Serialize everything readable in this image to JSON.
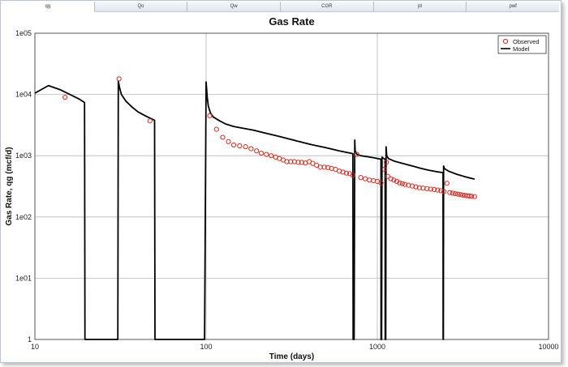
{
  "tabs": [
    {
      "label": "qg",
      "active": true
    },
    {
      "label": "Qo",
      "active": false
    },
    {
      "label": "Qw",
      "active": false
    },
    {
      "label": "CGR",
      "active": false
    },
    {
      "label": "pt",
      "active": false
    },
    {
      "label": "pwf",
      "active": false
    }
  ],
  "colors": {
    "observed": "#d42a1e",
    "model": "#000000",
    "grid": "#b8b8b8",
    "frame_border": "#b9c4d2"
  },
  "chart_data": {
    "type": "scatter",
    "title": "Gas Rate",
    "xlabel": "Time (days)",
    "ylabel": "Gas Rate, qg (mcf/d)",
    "x_scale": "log",
    "y_scale": "log",
    "xlim": [
      10,
      10000
    ],
    "ylim": [
      1,
      100000
    ],
    "x_ticks": [
      {
        "value": 10,
        "label": "10"
      },
      {
        "value": 100,
        "label": "100"
      },
      {
        "value": 1000,
        "label": "1000"
      },
      {
        "value": 10000,
        "label": "10000"
      }
    ],
    "y_ticks": [
      {
        "value": 1,
        "label": "1"
      },
      {
        "value": 10,
        "label": "1e01"
      },
      {
        "value": 100,
        "label": "1e02"
      },
      {
        "value": 1000,
        "label": "1e03"
      },
      {
        "value": 10000,
        "label": "1e04"
      },
      {
        "value": 100000,
        "label": "1e05"
      }
    ],
    "grid": true,
    "legend_position": "top-right",
    "series": [
      {
        "name": "Observed",
        "kind": "markers",
        "points": [
          [
            15,
            9000
          ],
          [
            31,
            18000
          ],
          [
            47,
            3700
          ],
          [
            105,
            4500
          ],
          [
            115,
            2700
          ],
          [
            125,
            2000
          ],
          [
            135,
            1700
          ],
          [
            145,
            1500
          ],
          [
            157,
            1450
          ],
          [
            170,
            1400
          ],
          [
            183,
            1300
          ],
          [
            197,
            1200
          ],
          [
            210,
            1100
          ],
          [
            225,
            1050
          ],
          [
            240,
            1000
          ],
          [
            255,
            950
          ],
          [
            268,
            900
          ],
          [
            282,
            850
          ],
          [
            296,
            800
          ],
          [
            312,
            800
          ],
          [
            328,
            800
          ],
          [
            345,
            780
          ],
          [
            362,
            780
          ],
          [
            380,
            760
          ],
          [
            400,
            800
          ],
          [
            420,
            750
          ],
          [
            442,
            700
          ],
          [
            465,
            650
          ],
          [
            490,
            650
          ],
          [
            515,
            640
          ],
          [
            540,
            620
          ],
          [
            570,
            600
          ],
          [
            600,
            560
          ],
          [
            630,
            540
          ],
          [
            660,
            520
          ],
          [
            690,
            510
          ],
          [
            720,
            480
          ],
          [
            760,
            1050
          ],
          [
            800,
            440
          ],
          [
            850,
            420
          ],
          [
            900,
            400
          ],
          [
            950,
            390
          ],
          [
            1000,
            380
          ],
          [
            1050,
            360
          ],
          [
            1100,
            600
          ],
          [
            1130,
            780
          ],
          [
            1150,
            460
          ],
          [
            1200,
            420
          ],
          [
            1250,
            400
          ],
          [
            1300,
            380
          ],
          [
            1350,
            360
          ],
          [
            1400,
            350
          ],
          [
            1450,
            340
          ],
          [
            1520,
            330
          ],
          [
            1600,
            320
          ],
          [
            1680,
            310
          ],
          [
            1760,
            300
          ],
          [
            1850,
            295
          ],
          [
            1950,
            290
          ],
          [
            2050,
            285
          ],
          [
            2150,
            280
          ],
          [
            2250,
            275
          ],
          [
            2350,
            268
          ],
          [
            2450,
            260
          ],
          [
            2550,
            355
          ],
          [
            2650,
            250
          ],
          [
            2750,
            245
          ],
          [
            2850,
            240
          ],
          [
            2950,
            236
          ],
          [
            3050,
            232
          ],
          [
            3150,
            228
          ],
          [
            3250,
            225
          ],
          [
            3350,
            222
          ],
          [
            3450,
            220
          ],
          [
            3550,
            218
          ],
          [
            3700,
            215
          ]
        ]
      },
      {
        "name": "Model",
        "kind": "line",
        "points": [
          [
            10,
            10500
          ],
          [
            12,
            14000
          ],
          [
            14,
            12000
          ],
          [
            16,
            10000
          ],
          [
            18,
            8500
          ],
          [
            19.5,
            7400
          ],
          [
            19.6,
            1
          ],
          [
            20.3,
            1
          ],
          [
            30.5,
            1
          ],
          [
            30.7,
            16500
          ],
          [
            31.2,
            13000
          ],
          [
            32,
            10000
          ],
          [
            34,
            7800
          ],
          [
            37,
            6200
          ],
          [
            40,
            5200
          ],
          [
            44,
            4500
          ],
          [
            48,
            4000
          ],
          [
            50,
            3800
          ],
          [
            50.3,
            1
          ],
          [
            51,
            1
          ],
          [
            98,
            1
          ],
          [
            100,
            16000
          ],
          [
            101.5,
            9000
          ],
          [
            103,
            6500
          ],
          [
            106,
            5000
          ],
          [
            110,
            4300
          ],
          [
            120,
            3700
          ],
          [
            130,
            3300
          ],
          [
            145,
            3000
          ],
          [
            165,
            2800
          ],
          [
            190,
            2600
          ],
          [
            220,
            2350
          ],
          [
            260,
            2100
          ],
          [
            300,
            1900
          ],
          [
            350,
            1700
          ],
          [
            420,
            1500
          ],
          [
            500,
            1350
          ],
          [
            600,
            1200
          ],
          [
            700,
            1100
          ],
          [
            720,
            1080
          ],
          [
            722,
            1
          ],
          [
            732,
            1
          ],
          [
            738,
            1800
          ],
          [
            742,
            1200
          ],
          [
            760,
            1050
          ],
          [
            800,
            1000
          ],
          [
            880,
            960
          ],
          [
            960,
            920
          ],
          [
            1040,
            880
          ],
          [
            1050,
            880
          ],
          [
            1052,
            1
          ],
          [
            1060,
            1
          ],
          [
            1065,
            950
          ],
          [
            1090,
            900
          ],
          [
            1110,
            880
          ],
          [
            1112,
            1
          ],
          [
            1120,
            1
          ],
          [
            1125,
            1400
          ],
          [
            1135,
            1000
          ],
          [
            1160,
            900
          ],
          [
            1250,
            820
          ],
          [
            1400,
            750
          ],
          [
            1600,
            680
          ],
          [
            1800,
            620
          ],
          [
            2000,
            580
          ],
          [
            2200,
            550
          ],
          [
            2400,
            530
          ],
          [
            2420,
            525
          ],
          [
            2423,
            1
          ],
          [
            2432,
            1
          ],
          [
            2438,
            680
          ],
          [
            2460,
            620
          ],
          [
            2600,
            560
          ],
          [
            2900,
            500
          ],
          [
            3200,
            460
          ],
          [
            3500,
            430
          ],
          [
            3700,
            415
          ]
        ]
      }
    ]
  }
}
